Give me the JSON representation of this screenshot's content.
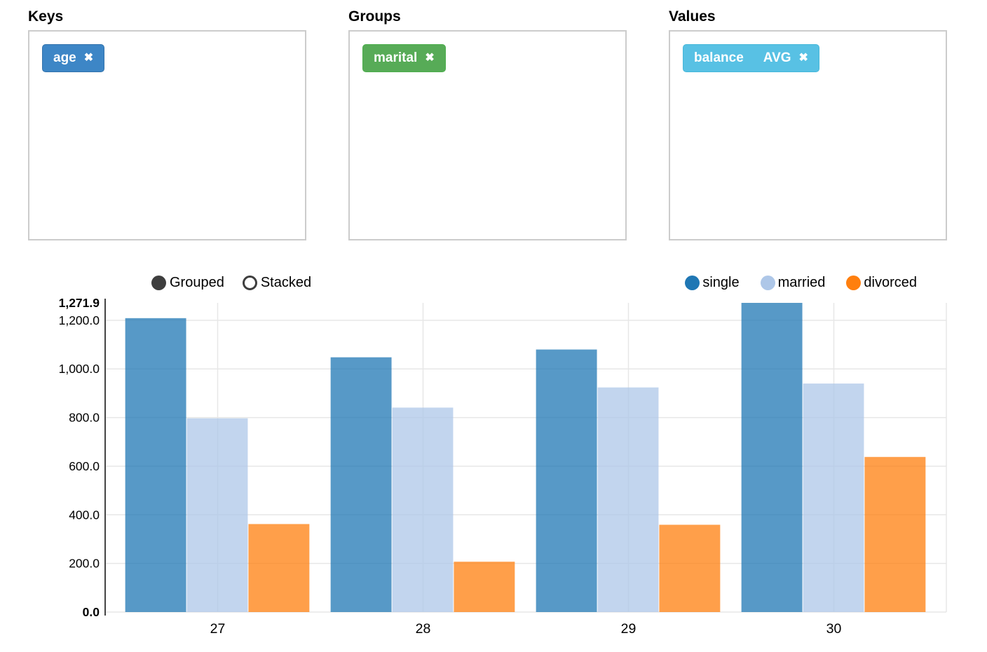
{
  "icons": {
    "remove": "✖"
  },
  "panels": {
    "keys": {
      "title": "Keys",
      "tags": [
        {
          "label": "age"
        }
      ],
      "tag_color": "#3d86c6"
    },
    "groups": {
      "title": "Groups",
      "tags": [
        {
          "label": "marital"
        }
      ],
      "tag_color": "#57ab57"
    },
    "values": {
      "title": "Values",
      "tags": [
        {
          "label": "balance",
          "aggregate": "AVG"
        }
      ],
      "tag_color": "#58c1e4"
    }
  },
  "chart_data": {
    "type": "bar",
    "mode": "grouped",
    "controls": [
      {
        "label": "Grouped",
        "selected": true
      },
      {
        "label": "Stacked",
        "selected": false
      }
    ],
    "categories": [
      "27",
      "28",
      "29",
      "30"
    ],
    "series": [
      {
        "name": "single",
        "color": "#1f77b4",
        "values": [
          1209,
          1048,
          1080,
          1271.9
        ]
      },
      {
        "name": "married",
        "color": "#aec7e8",
        "values": [
          797,
          841,
          924,
          940
        ]
      },
      {
        "name": "divorced",
        "color": "#ff7f0e",
        "values": [
          362,
          207,
          359,
          638
        ]
      }
    ],
    "title": "",
    "xlabel": "",
    "ylabel": "",
    "ylim": [
      0,
      1271.9
    ],
    "yticks": [
      0,
      200,
      400,
      600,
      800,
      1000,
      1200
    ],
    "ymax_label": "1,271.9",
    "ymin_label": "0.0",
    "bar_opacity": 0.75,
    "grid": true,
    "legend_position": "top-right",
    "axis_color": "#444444",
    "grid_color": "#e7e7e7"
  }
}
